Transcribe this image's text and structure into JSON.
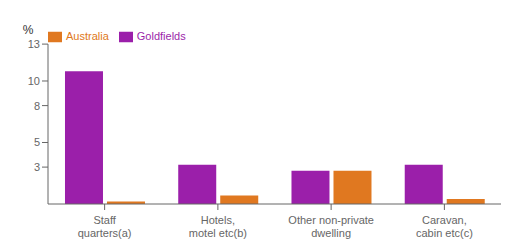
{
  "chart_data": {
    "type": "bar",
    "ylabel": "%",
    "categories": [
      "Staff quarters(a)",
      "Hotels, motel etc(b)",
      "Other non-private dwelling",
      "Caravan, cabin etc(c)"
    ],
    "series": [
      {
        "name": "Goldfields",
        "color": "#9b1faa",
        "values": [
          10.8,
          3.2,
          2.7,
          3.2
        ]
      },
      {
        "name": "Australia",
        "color": "#e07820",
        "values": [
          0.2,
          0.7,
          2.7,
          0.4
        ]
      }
    ],
    "ylim": [
      0,
      13
    ],
    "yticks": [
      3,
      5,
      8,
      10,
      13
    ],
    "legend": "upper left"
  }
}
